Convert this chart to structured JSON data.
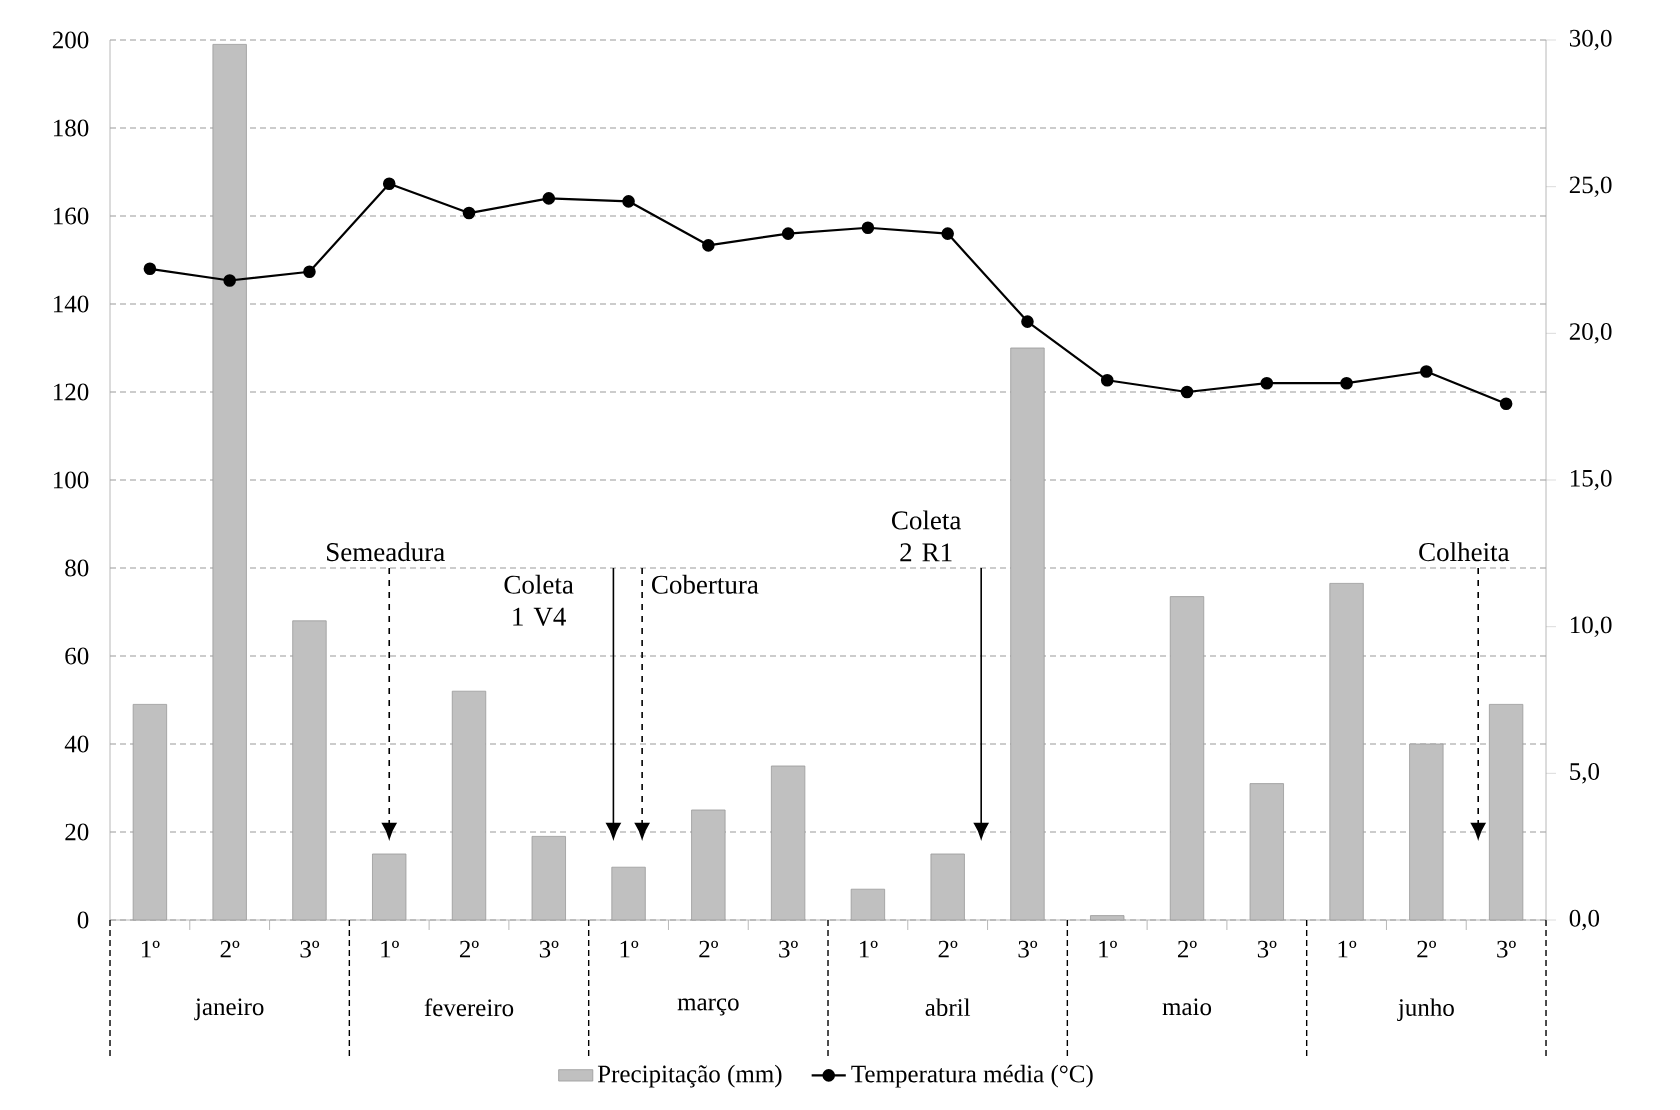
{
  "chart_data": {
    "type": "bar",
    "categories": [
      "1º",
      "2º",
      "3º",
      "1º",
      "2º",
      "3º",
      "1º",
      "2º",
      "3º",
      "1º",
      "2º",
      "3º",
      "1º",
      "2º",
      "3º",
      "1º",
      "2º",
      "3º"
    ],
    "series": [
      {
        "name": "Precipitação (mm)",
        "color": "#c0c0c0",
        "values": [
          49,
          199,
          68,
          15,
          52,
          19,
          12,
          25,
          35,
          7,
          15,
          130,
          1,
          73.5,
          31,
          76.5,
          40,
          49
        ]
      },
      {
        "name": "Temperatura média (°C)",
        "type": "line",
        "axis": "y2",
        "color": "#000000",
        "marker": "circle",
        "line_style": "solid",
        "values": [
          22.2,
          21.8,
          22.1,
          25.1,
          24.1,
          24.6,
          24.5,
          23.0,
          23.4,
          23.6,
          23.4,
          20.4,
          18.4,
          18.0,
          18.3,
          18.3,
          18.7,
          17.6
        ]
      }
    ],
    "ylim": [
      0,
      200
    ],
    "yticks": [
      0,
      20,
      40,
      60,
      80,
      100,
      120,
      140,
      160,
      180,
      200
    ],
    "y2lim": [
      0,
      30
    ],
    "y2ticks": [
      {
        "value": 0,
        "label": "0,0"
      },
      {
        "value": 5,
        "label": "5,0"
      },
      {
        "value": 10,
        "label": "10,0"
      },
      {
        "value": 15,
        "label": "15,0"
      },
      {
        "value": 20,
        "label": "20,0"
      },
      {
        "value": 25,
        "label": "25,0"
      },
      {
        "value": 30,
        "label": "30,0"
      }
    ],
    "grid": "y",
    "legend": "bottom",
    "annotations": [
      "janeiro",
      "fevereiro",
      "março",
      "abril",
      "maio",
      "junho",
      "Semeadura",
      "Coleta 1 V4",
      "Cobertura",
      "Coleta 2 R1",
      "Colheita"
    ]
  }
}
